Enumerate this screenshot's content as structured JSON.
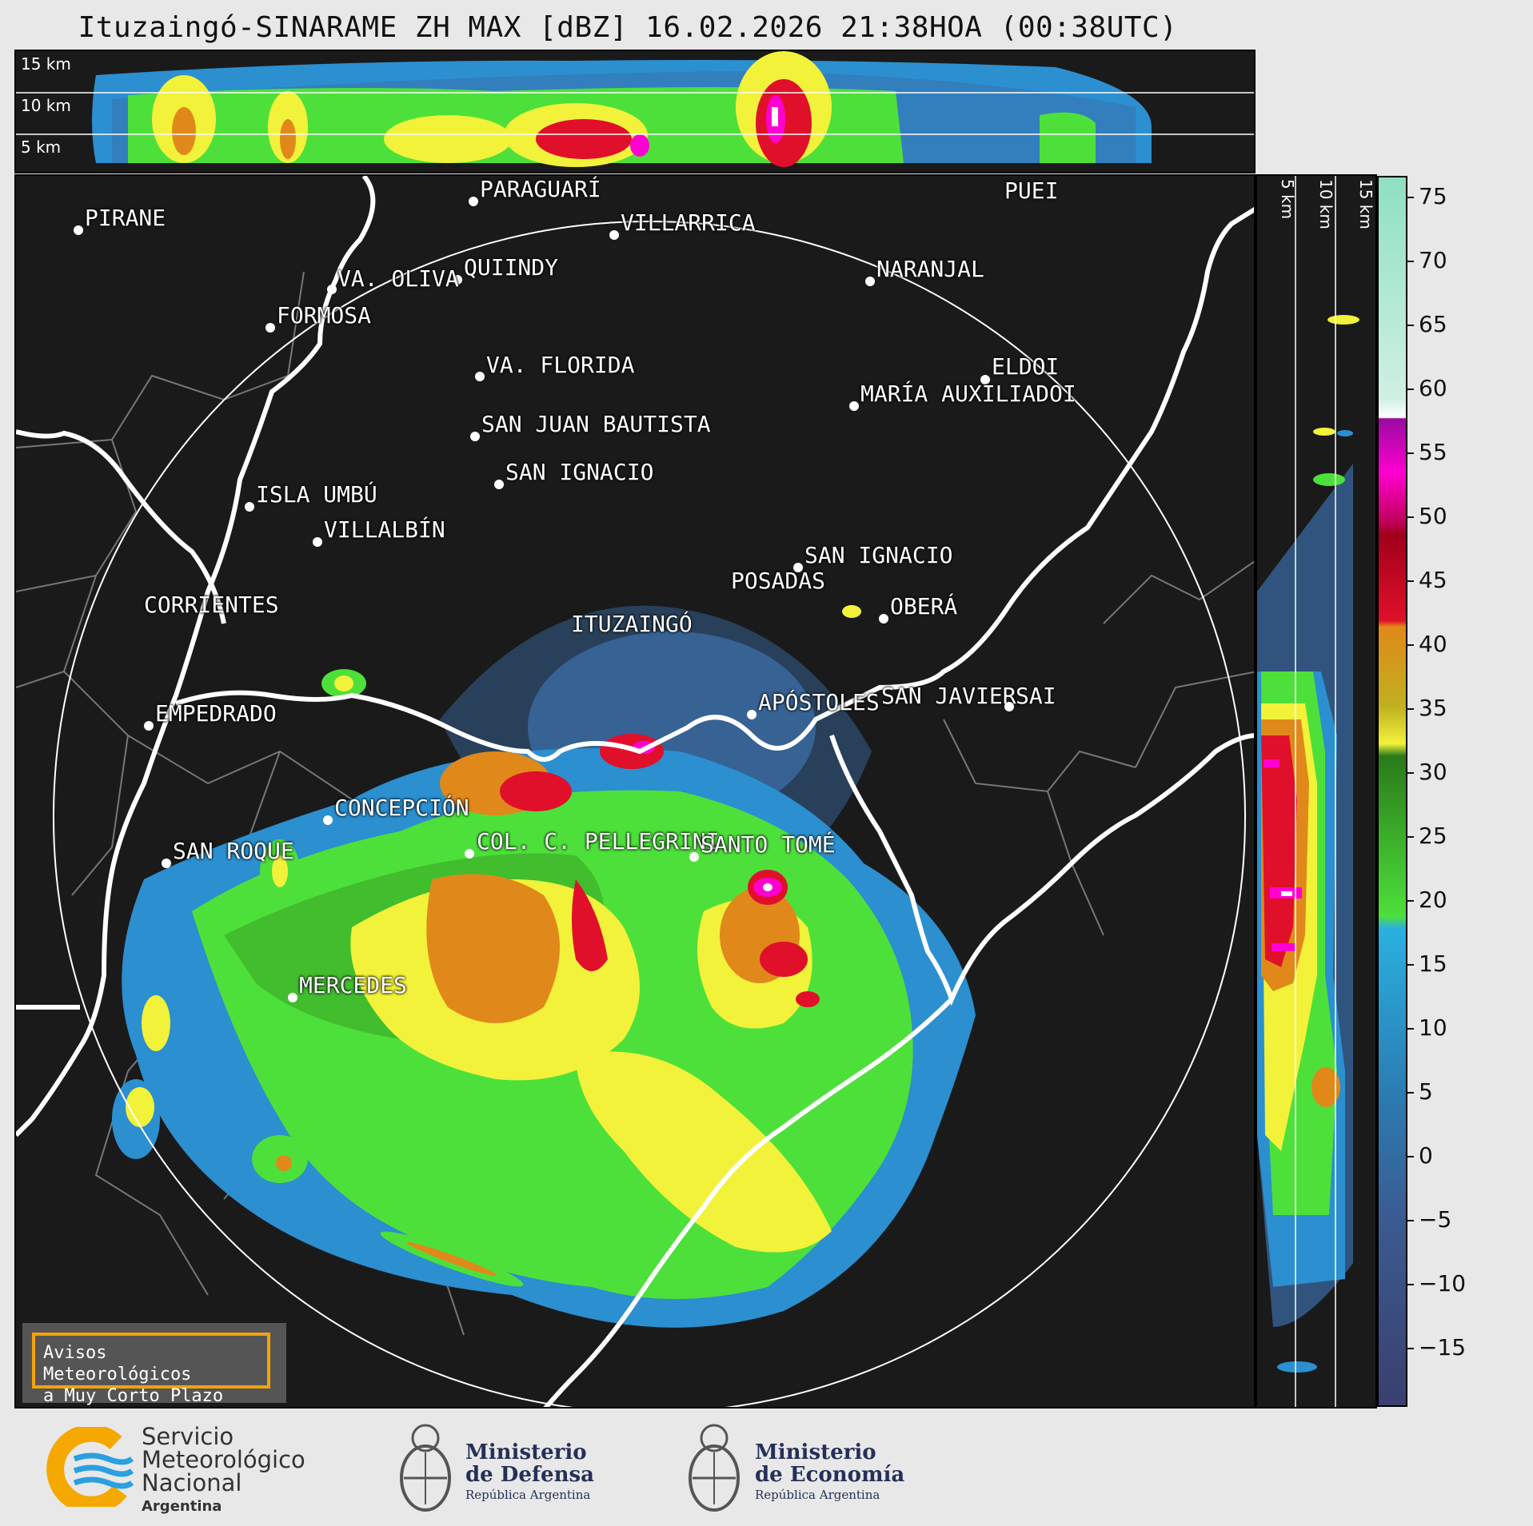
{
  "title": "Ituzaingó-SINARAME ZH MAX [dBZ] 16.02.2026 21:38HOA (00:38UTC)",
  "top_panel": {
    "height_labels": [
      "15 km",
      "10 km",
      "5 km"
    ]
  },
  "side_panel": {
    "height_labels": [
      "5 km",
      "10 km",
      "15 km"
    ]
  },
  "colorbar": {
    "unit": "dBZ",
    "range": [
      -20,
      77
    ],
    "ticks": [
      "75",
      "70",
      "65",
      "60",
      "55",
      "50",
      "45",
      "40",
      "35",
      "30",
      "25",
      "20",
      "15",
      "10",
      "5",
      "0",
      "−5",
      "−10",
      "−15"
    ],
    "colors": {
      "dark": "#3a3f6e",
      "blue_low": "#3b6ea8",
      "blue": "#2b8fd0",
      "green_light": "#4de03a",
      "green_dark": "#2a7a1a",
      "yellow": "#f2f23a",
      "orange": "#e0891a",
      "red": "#e0102a",
      "dark_red": "#a0001a",
      "magenta": "#ff00d0",
      "purple": "#9a0aa0",
      "white": "#ffffff",
      "mint": "#8ee0c0"
    }
  },
  "map": {
    "cities": [
      {
        "name": "PIRANE"
      },
      {
        "name": "PARAGUARÍ"
      },
      {
        "name": "VILLARRICA"
      },
      {
        "name": "PUEI"
      },
      {
        "name": "QUIINDY"
      },
      {
        "name": "VA. OLIVA"
      },
      {
        "name": "NARANJAL"
      },
      {
        "name": "FORMOSA"
      },
      {
        "name": "VA. FLORIDA"
      },
      {
        "name": "ELDOI"
      },
      {
        "name": "MARÍA AUXILIADOI"
      },
      {
        "name": "SAN JUAN BAUTISTA"
      },
      {
        "name": "SAN IGNACIO"
      },
      {
        "name": "ISLA UMBÚ"
      },
      {
        "name": "VILLALBÍN"
      },
      {
        "name": "SAN IGNACIO"
      },
      {
        "name": "POSADAS"
      },
      {
        "name": "CORRIENTES"
      },
      {
        "name": "ITUZAINGÓ"
      },
      {
        "name": "OBERÁ"
      },
      {
        "name": "EMPEDRADO"
      },
      {
        "name": "APÓSTOLES"
      },
      {
        "name": "SAN JAVIER"
      },
      {
        "name": "SAI"
      },
      {
        "name": "CONCEPCIÓN"
      },
      {
        "name": "COL. C. PELLEGRINI"
      },
      {
        "name": "SANTO TOMÉ"
      },
      {
        "name": "SAN ROQUE"
      },
      {
        "name": "MERCEDES"
      }
    ]
  },
  "warning": {
    "line1": "Avisos Meteorológicos",
    "line2": "a Muy Corto Plazo"
  },
  "footer": {
    "smn": {
      "line1": "Servicio",
      "line2": "Meteorológico",
      "line3": "Nacional",
      "line4": "Argentina"
    },
    "defensa": {
      "line1": "Ministerio",
      "line2": "de Defensa",
      "line3": "República Argentina"
    },
    "economia": {
      "line1": "Ministerio",
      "line2": "de Economía",
      "line3": "República Argentina"
    }
  }
}
